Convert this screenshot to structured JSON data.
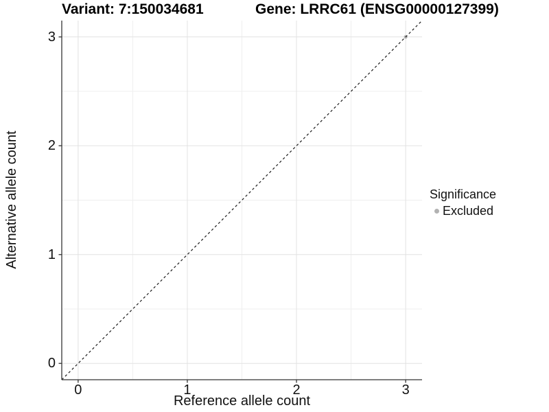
{
  "figure": {
    "title_left": "Variant: 7:150034681",
    "title_right": "Gene: LRRC61 (ENSG00000127399)"
  },
  "axes": {
    "x": {
      "label": "Reference allele count",
      "tick_labels": [
        "0",
        "1",
        "2",
        "3"
      ]
    },
    "y": {
      "label": "Alternative allele count",
      "tick_labels": [
        "0",
        "1",
        "2",
        "3"
      ]
    }
  },
  "legend": {
    "title": "Significance",
    "items": [
      {
        "label": "Excluded",
        "color": "#b2b2b2"
      }
    ]
  },
  "chart_data": {
    "type": "scatter",
    "title": "Variant: 7:150034681   Gene: LRRC61 (ENSG00000127399)",
    "xlabel": "Reference allele count",
    "ylabel": "Alternative allele count",
    "xlim": [
      -0.15,
      3.15
    ],
    "ylim": [
      -0.15,
      3.15
    ],
    "x_ticks": [
      0,
      1,
      2,
      3
    ],
    "y_ticks": [
      0,
      1,
      2,
      3
    ],
    "x_minor_ticks": [
      0.5,
      1.5,
      2.5
    ],
    "y_minor_ticks": [
      0.5,
      1.5,
      2.5
    ],
    "grid": true,
    "legend_position": "right",
    "series": [
      {
        "name": "Excluded",
        "color": "#b2b2b2",
        "points": [
          {
            "x": 3,
            "y": 3
          }
        ]
      }
    ],
    "reference_line": {
      "kind": "identity",
      "slope": 1,
      "intercept": 0,
      "style": "dashed",
      "color": "#1a1a1a"
    },
    "colors": {
      "background": "#ffffff",
      "grid_major": "#e2e2e2",
      "grid_minor": "#efefef",
      "axis_line": "#333333",
      "point_excluded": "#b2b2b2"
    }
  }
}
